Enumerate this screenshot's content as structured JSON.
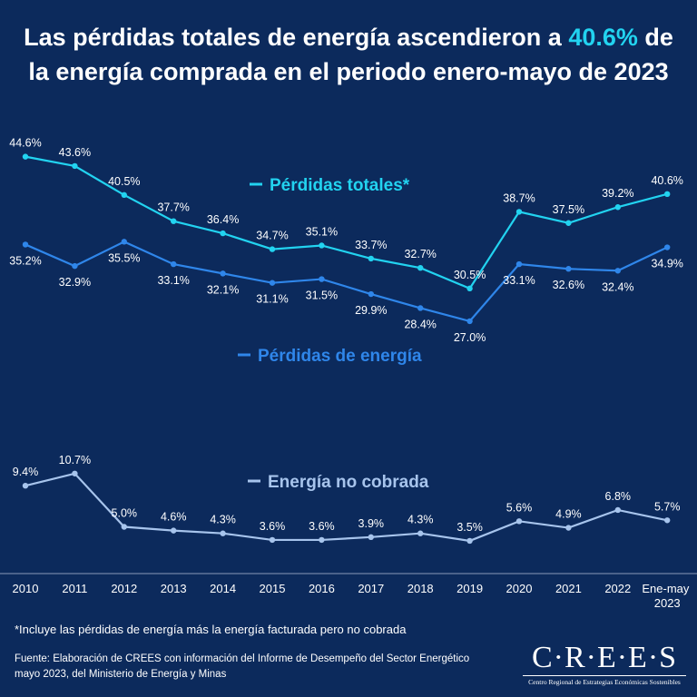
{
  "chart_data": {
    "type": "line",
    "title_start": "Las pérdidas totales de energía ascendieron a",
    "title_highlight": "40.6%",
    "title_end": "de la energía comprada en el periodo enero-mayo de 2023",
    "categories": [
      "2010",
      "2011",
      "2012",
      "2013",
      "2014",
      "2015",
      "2016",
      "2017",
      "2018",
      "2019",
      "2020",
      "2021",
      "2022",
      "Ene-may 2023"
    ],
    "ylim": [
      0,
      50
    ],
    "series": [
      {
        "name": "Pérdidas totales*",
        "color": "#22d3f0",
        "values": [
          44.6,
          43.6,
          40.5,
          37.7,
          36.4,
          34.7,
          35.1,
          33.7,
          32.7,
          30.5,
          38.7,
          37.5,
          39.2,
          40.6
        ],
        "value_labels": [
          "44.6%",
          "43.6%",
          "40.5%",
          "37.7%",
          "36.4%",
          "34.7%",
          "35.1%",
          "33.7%",
          "32.7%",
          "30.5%",
          "38.7%",
          "37.5%",
          "39.2%",
          "40.6%"
        ]
      },
      {
        "name": "Pérdidas de energía",
        "color": "#2f86ea",
        "values": [
          35.2,
          32.9,
          35.5,
          33.1,
          32.1,
          31.1,
          31.5,
          29.9,
          28.4,
          27.0,
          33.1,
          32.6,
          32.4,
          34.9
        ],
        "value_labels": [
          "35.2%",
          "32.9%",
          "35.5%",
          "33.1%",
          "32.1%",
          "31.1%",
          "31.5%",
          "29.9%",
          "28.4%",
          "27.0%",
          "33.1%",
          "32.6%",
          "32.4%",
          "34.9%"
        ]
      },
      {
        "name": "Energía no cobrada",
        "color": "#a7c4ec",
        "values": [
          9.4,
          10.7,
          5.0,
          4.6,
          4.3,
          3.6,
          3.6,
          3.9,
          4.3,
          3.5,
          5.6,
          4.9,
          6.8,
          5.7
        ],
        "value_labels": [
          "9.4%",
          "10.7%",
          "5.0%",
          "4.6%",
          "4.3%",
          "3.6%",
          "3.6%",
          "3.9%",
          "4.3%",
          "3.5%",
          "5.6%",
          "4.9%",
          "6.8%",
          "5.7%"
        ]
      }
    ]
  },
  "footnote": "*Incluye las pérdidas de energía más la energía facturada pero no cobrada",
  "source": "Fuente: Elaboración de CREES con información del Informe de Desempeño del Sector Energético mayo 2023, del Ministerio de Energía y Minas",
  "logo": {
    "name": "C·R·E·E·S",
    "subtitle": "Centro Regional de Estrategias Económicas Sostenibles"
  }
}
